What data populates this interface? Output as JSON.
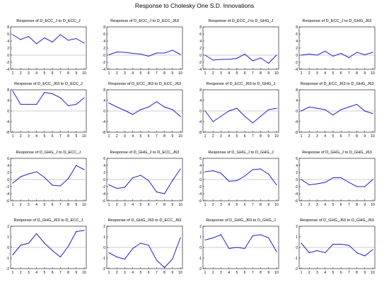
{
  "figure_title": "Response to Cholesky One S.D. Innovations",
  "chart_data": [
    {
      "type": "line",
      "title": "Response of D_ECC_J to D_ECC_J",
      "x": [
        1,
        2,
        3,
        4,
        5,
        6,
        7,
        8,
        9,
        10
      ],
      "ylim": [
        -4,
        8
      ],
      "yticks": [
        -4,
        -2,
        0,
        2,
        4,
        6,
        8
      ],
      "values": [
        5.8,
        4.4,
        5.3,
        3.2,
        4.9,
        3.7,
        5.8,
        4.2,
        4.7,
        3.4
      ]
    },
    {
      "type": "line",
      "title": "Response of D_ECC_J to D_ECC_J63",
      "x": [
        1,
        2,
        3,
        4,
        5,
        6,
        7,
        8,
        9,
        10
      ],
      "ylim": [
        -4,
        8
      ],
      "yticks": [
        -4,
        -2,
        0,
        2,
        4,
        6,
        8
      ],
      "values": [
        0.1,
        0.9,
        0.8,
        0.5,
        0.3,
        -0.3,
        0.6,
        0.6,
        1.4,
        0.2
      ]
    },
    {
      "type": "line",
      "title": "Response of D_ECC_J to D_GHG_J",
      "x": [
        1,
        2,
        3,
        4,
        5,
        6,
        7,
        8,
        9,
        10
      ],
      "ylim": [
        -4,
        8
      ],
      "yticks": [
        -4,
        -2,
        0,
        2,
        4,
        6,
        8
      ],
      "values": [
        0,
        -1.4,
        -1.2,
        -1.2,
        -0.9,
        0.3,
        -1.6,
        -0.8,
        -2.3,
        0
      ]
    },
    {
      "type": "line",
      "title": "Response of D_ECC_J to D_GHG_J63",
      "x": [
        1,
        2,
        3,
        4,
        5,
        6,
        7,
        8,
        9,
        10
      ],
      "ylim": [
        -4,
        8
      ],
      "yticks": [
        -4,
        -2,
        0,
        2,
        4,
        6,
        8
      ],
      "values": [
        0,
        0.3,
        0,
        1.1,
        -0.3,
        0.5,
        -0.7,
        0.8,
        0.1,
        0.8
      ]
    },
    {
      "type": "line",
      "title": "Response of D_ECC_J63 to D_ECC_J",
      "x": [
        1,
        2,
        3,
        4,
        5,
        6,
        7,
        8,
        9,
        10
      ],
      "ylim": [
        -8,
        8
      ],
      "yticks": [
        -8,
        -4,
        0,
        4,
        8
      ],
      "values": [
        7.5,
        2.5,
        2.5,
        2.5,
        7,
        6.5,
        5,
        2,
        2.5,
        5
      ]
    },
    {
      "type": "line",
      "title": "Response of D_ECC_J63 to D_ECC_J63",
      "x": [
        1,
        2,
        3,
        4,
        5,
        6,
        7,
        8,
        9,
        10
      ],
      "ylim": [
        -8,
        8
      ],
      "yticks": [
        -8,
        -4,
        0,
        4,
        8
      ],
      "values": [
        3,
        1.5,
        0.2,
        -1.3,
        0.5,
        1.5,
        3.5,
        1.5,
        0.5,
        -2
      ]
    },
    {
      "type": "line",
      "title": "Response of D_ECC_J63 to D_GHG_J",
      "x": [
        1,
        2,
        3,
        4,
        5,
        6,
        7,
        8,
        9,
        10
      ],
      "ylim": [
        -8,
        8
      ],
      "yticks": [
        -8,
        -4,
        0,
        4,
        8
      ],
      "values": [
        0,
        -4,
        -2,
        0,
        1,
        -2,
        -4.5,
        -2,
        0.5,
        1
      ]
    },
    {
      "type": "line",
      "title": "Response of D_ECC_J63 to D_GHG_J63",
      "x": [
        1,
        2,
        3,
        4,
        5,
        6,
        7,
        8,
        9,
        10
      ],
      "ylim": [
        -8,
        8
      ],
      "yticks": [
        -8,
        -4,
        0,
        4,
        8
      ],
      "values": [
        0,
        1.5,
        1,
        0.5,
        -1.5,
        0.5,
        1.5,
        2.5,
        0,
        -1
      ]
    },
    {
      "type": "line",
      "title": "Response of D_GHG_J to D_ECC_J",
      "x": [
        1,
        2,
        3,
        4,
        5,
        6,
        7,
        8,
        9,
        10
      ],
      "ylim": [
        -6,
        6
      ],
      "yticks": [
        -6,
        -4,
        -2,
        0,
        2,
        4,
        6
      ],
      "values": [
        -1,
        0.8,
        1.6,
        2.2,
        0.6,
        -1.6,
        -1.8,
        0.3,
        4,
        2.8
      ]
    },
    {
      "type": "line",
      "title": "Response of D_GHG_J to D_ECC_J63",
      "x": [
        1,
        2,
        3,
        4,
        5,
        6,
        7,
        8,
        9,
        10
      ],
      "ylim": [
        -6,
        6
      ],
      "yticks": [
        -6,
        -4,
        -2,
        0,
        2,
        4,
        6
      ],
      "values": [
        -1.5,
        -2.5,
        -2.2,
        0.5,
        1.2,
        -0.3,
        -3.5,
        -4,
        -0.3,
        3
      ]
    },
    {
      "type": "line",
      "title": "Response of D_GHG_J to D_GHG_J",
      "x": [
        1,
        2,
        3,
        4,
        5,
        6,
        7,
        8,
        9,
        10
      ],
      "ylim": [
        -6,
        6
      ],
      "yticks": [
        -6,
        -4,
        -2,
        0,
        2,
        4,
        6
      ],
      "values": [
        2.2,
        2.5,
        1.8,
        -0.5,
        -0.3,
        1,
        2.8,
        3,
        1.5,
        -1.5
      ]
    },
    {
      "type": "line",
      "title": "Response of D_GHG_J to D_GHG_J63",
      "x": [
        1,
        2,
        3,
        4,
        5,
        6,
        7,
        8,
        9,
        10
      ],
      "ylim": [
        -6,
        6
      ],
      "yticks": [
        -6,
        -4,
        -2,
        0,
        2,
        4,
        6
      ],
      "values": [
        0,
        -1.5,
        -1.2,
        -0.8,
        0.5,
        0.5,
        -0.8,
        -2,
        -2,
        0
      ]
    },
    {
      "type": "line",
      "title": "Response of D_GHG_J63 to D_ECC_J",
      "x": [
        1,
        2,
        3,
        4,
        5,
        6,
        7,
        8,
        9,
        10
      ],
      "ylim": [
        -2,
        2
      ],
      "yticks": [
        -2,
        -1,
        0,
        1,
        2
      ],
      "values": [
        -0.7,
        0.2,
        0.4,
        1.3,
        0.4,
        -0.3,
        -0.9,
        0.1,
        1.5,
        1.6
      ]
    },
    {
      "type": "line",
      "title": "Response of D_GHG_J63 to D_ECC_J63",
      "x": [
        1,
        2,
        3,
        4,
        5,
        6,
        7,
        8,
        9,
        10
      ],
      "ylim": [
        -2,
        2
      ],
      "yticks": [
        -2,
        -1,
        0,
        1,
        2
      ],
      "values": [
        -0.5,
        -0.9,
        -1.1,
        -0.1,
        0.4,
        0.2,
        -1.2,
        -1.9,
        -1.1,
        0.9
      ]
    },
    {
      "type": "line",
      "title": "Response of D_GHG_J63 to D_GHG_J",
      "x": [
        1,
        2,
        3,
        4,
        5,
        6,
        7,
        8,
        9,
        10
      ],
      "ylim": [
        -2,
        2
      ],
      "yticks": [
        -2,
        -1,
        0,
        1,
        2
      ],
      "values": [
        0.7,
        0.9,
        1.2,
        -0.1,
        0,
        -0.1,
        1.1,
        1.2,
        0.9,
        -0.4
      ]
    },
    {
      "type": "line",
      "title": "Response of D_GHG_J63 to D_GHG_J63",
      "x": [
        1,
        2,
        3,
        4,
        5,
        6,
        7,
        8,
        9,
        10
      ],
      "ylim": [
        -2,
        2
      ],
      "yticks": [
        -2,
        -1,
        0,
        1,
        2
      ],
      "values": [
        0.4,
        -0.5,
        -0.3,
        -0.5,
        0.3,
        0.3,
        0.2,
        -0.5,
        -0.8,
        -0.2
      ]
    }
  ],
  "colors": {
    "series": "#1f1fd0",
    "axis": "#000000",
    "zero_line": "#9a9a9a"
  }
}
